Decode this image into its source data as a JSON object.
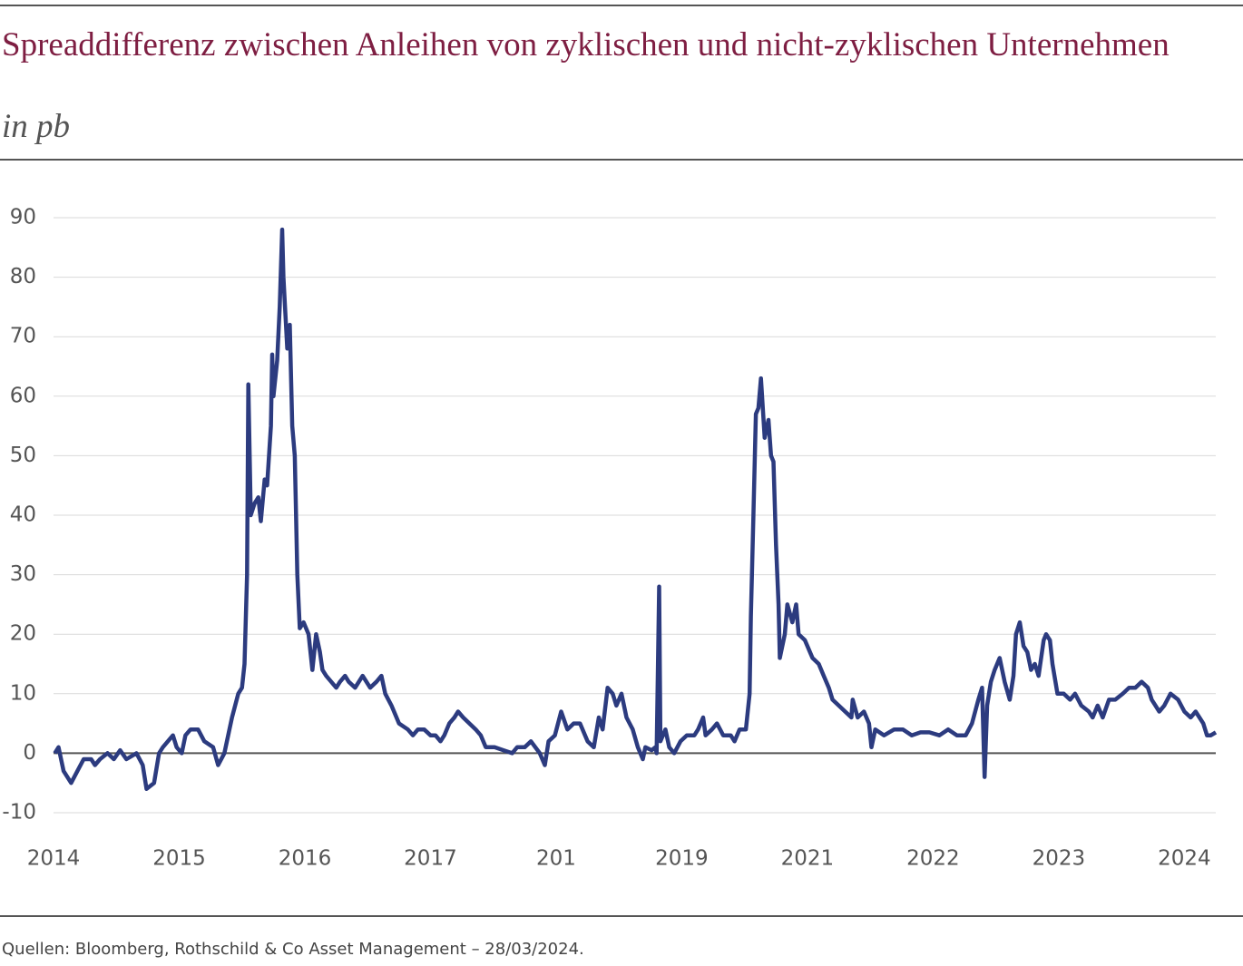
{
  "chart_data": {
    "type": "line",
    "title": "Spreaddifferenz zwischen Anleihen von zyklischen und nicht-zyklischen Unternehmen",
    "subtitle": "in pb",
    "source": "Quellen: Bloomberg, Rothschild & Co Asset Management – 28/03/2024.",
    "color": "#2c3b7f",
    "grid": true,
    "xlim": [
      0,
      9.25
    ],
    "xticks": [
      {
        "value": 0,
        "label": "2014"
      },
      {
        "value": 1,
        "label": "2015"
      },
      {
        "value": 2,
        "label": "2016"
      },
      {
        "value": 3,
        "label": "2017"
      },
      {
        "value": 4,
        "label": "201"
      },
      {
        "value": 5,
        "label": "2019"
      },
      {
        "value": 6,
        "label": "2021"
      },
      {
        "value": 7,
        "label": "2022"
      },
      {
        "value": 8,
        "label": "2023"
      },
      {
        "value": 9,
        "label": "2024"
      }
    ],
    "ylim": [
      -10,
      90
    ],
    "yticks": [
      -10,
      0,
      10,
      20,
      30,
      40,
      50,
      60,
      70,
      80,
      90
    ],
    "x": [
      0.01,
      0.04,
      0.08,
      0.14,
      0.19,
      0.24,
      0.3,
      0.33,
      0.37,
      0.43,
      0.48,
      0.53,
      0.58,
      0.66,
      0.71,
      0.74,
      0.8,
      0.84,
      0.87,
      0.91,
      0.95,
      0.98,
      1.02,
      1.05,
      1.09,
      1.15,
      1.2,
      1.27,
      1.31,
      1.36,
      1.42,
      1.47,
      1.5,
      1.52,
      1.54,
      1.55,
      1.57,
      1.6,
      1.63,
      1.65,
      1.68,
      1.7,
      1.73,
      1.74,
      1.75,
      1.78,
      1.8,
      1.82,
      1.83,
      1.86,
      1.88,
      1.9,
      1.92,
      1.94,
      1.96,
      1.99,
      2.03,
      2.06,
      2.09,
      2.12,
      2.14,
      2.17,
      2.21,
      2.25,
      2.28,
      2.32,
      2.35,
      2.4,
      2.46,
      2.52,
      2.57,
      2.61,
      2.64,
      2.69,
      2.75,
      2.82,
      2.86,
      2.9,
      2.95,
      3.0,
      3.04,
      3.08,
      3.11,
      3.15,
      3.19,
      3.22,
      3.26,
      3.31,
      3.36,
      3.4,
      3.44,
      3.51,
      3.58,
      3.65,
      3.69,
      3.75,
      3.8,
      3.87,
      3.91,
      3.94,
      3.99,
      4.04,
      4.09,
      4.14,
      4.19,
      4.25,
      4.3,
      4.34,
      4.37,
      4.41,
      4.45,
      4.48,
      4.52,
      4.56,
      4.61,
      4.65,
      4.69,
      4.71,
      4.76,
      4.79,
      4.8,
      4.82,
      4.83,
      4.87,
      4.9,
      4.94,
      4.99,
      5.04,
      5.1,
      5.13,
      5.17,
      5.19,
      5.24,
      5.28,
      5.33,
      5.39,
      5.42,
      5.46,
      5.51,
      5.54,
      5.55,
      5.57,
      5.59,
      5.61,
      5.63,
      5.66,
      5.69,
      5.71,
      5.73,
      5.75,
      5.77,
      5.78,
      5.82,
      5.84,
      5.88,
      5.91,
      5.93,
      5.98,
      6.04,
      6.09,
      6.13,
      6.17,
      6.2,
      6.25,
      6.3,
      6.35,
      6.36,
      6.4,
      6.45,
      6.49,
      6.51,
      6.54,
      6.61,
      6.69,
      6.76,
      6.83,
      6.9,
      6.97,
      7.05,
      7.12,
      7.19,
      7.26,
      7.31,
      7.36,
      7.39,
      7.41,
      7.43,
      7.46,
      7.49,
      7.53,
      7.57,
      7.61,
      7.64,
      7.66,
      7.69,
      7.72,
      7.75,
      7.78,
      7.81,
      7.84,
      7.88,
      7.9,
      7.93,
      7.95,
      7.99,
      8.04,
      8.09,
      8.13,
      8.18,
      8.24,
      8.27,
      8.31,
      8.35,
      8.4,
      8.45,
      8.51,
      8.56,
      8.61,
      8.66,
      8.71,
      8.74,
      8.8,
      8.84,
      8.89,
      8.95,
      9.0,
      9.05,
      9.09,
      9.12,
      9.15,
      9.18,
      9.21,
      9.25
    ],
    "values": [
      0,
      1,
      -3,
      -5,
      -3,
      -1,
      -1,
      -2,
      -1,
      0,
      -1,
      0.5,
      -1,
      0,
      -2,
      -6,
      -5,
      0,
      1,
      2,
      3,
      1,
      0,
      3,
      4,
      4,
      2,
      1,
      -2,
      0,
      6,
      10,
      11,
      15,
      30,
      62,
      40,
      42,
      43,
      39,
      46,
      45,
      55,
      67,
      60,
      66,
      75,
      88,
      80,
      68,
      72,
      55,
      50,
      30,
      21,
      22,
      20,
      14,
      20,
      17,
      14,
      13,
      12,
      11,
      12,
      13,
      12,
      11,
      13,
      11,
      12,
      13,
      10,
      8,
      5,
      4,
      3,
      4,
      4,
      3,
      3,
      2,
      3,
      5,
      6,
      7,
      6,
      5,
      4,
      3,
      1,
      1,
      0.5,
      0,
      1,
      1,
      2,
      0,
      -2,
      2,
      3,
      7,
      4,
      5,
      5,
      2,
      1,
      6,
      4,
      11,
      10,
      8,
      10,
      6,
      4,
      1,
      -1,
      1,
      0.5,
      1,
      0,
      28,
      2,
      4,
      1,
      0,
      2,
      3,
      3,
      4,
      6,
      3,
      4,
      5,
      3,
      3,
      2,
      4,
      4,
      10,
      23,
      40,
      57,
      58,
      63,
      53,
      56,
      50,
      49,
      35,
      25,
      16,
      20,
      25,
      22,
      25,
      20,
      19,
      16,
      15,
      13,
      11,
      9,
      8,
      7,
      6,
      9,
      6,
      7,
      5,
      1,
      4,
      3,
      4,
      4,
      3,
      3.5,
      3.5,
      3,
      4,
      3,
      3,
      5,
      9,
      11,
      -4,
      8,
      12,
      14,
      16,
      12,
      9,
      13,
      20,
      22,
      18,
      17,
      14,
      15,
      13,
      19,
      20,
      19,
      15,
      10,
      10,
      9,
      10,
      8,
      7,
      6,
      8,
      6,
      9,
      9,
      10,
      11,
      11,
      12,
      11,
      9,
      7,
      8,
      10,
      9,
      7,
      6,
      7,
      6,
      5,
      3,
      3,
      3.5
    ]
  }
}
